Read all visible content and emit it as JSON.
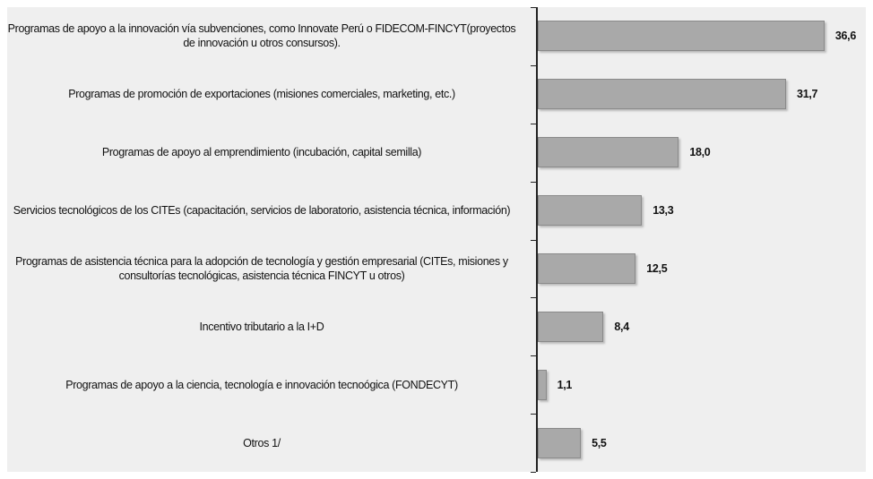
{
  "chart_data": {
    "type": "barh",
    "categories": [
      "Programas de apoyo a la innovación vía subvenciones, como Innovate Perú o FIDECOM-FINCYT(proyectos de innovación u otros consursos).",
      "Programas de promoción de exportaciones (misiones comerciales, marketing, etc.)",
      "Programas de apoyo al emprendimiento (incubación, capital semilla)",
      "Servicios tecnológicos de los CITEs (capacitación, servicios de laboratorio, asistencia técnica, información)",
      "Programas de asistencia técnica para la adopción de tecnología y gestión empresarial (CITEs, misiones y consultorías tecnológicas, asistencia técnica FINCYT u otros)",
      "Incentivo tributario a la I+D",
      "Programas de apoyo a la ciencia, tecnología e innovación tecnoógica (FONDECYT)",
      "Otros 1/"
    ],
    "values": [
      36.6,
      31.7,
      18.0,
      13.3,
      12.5,
      8.4,
      1.1,
      5.5
    ],
    "value_labels": [
      "36,6",
      "31,7",
      "18,0",
      "13,3",
      "12,5",
      "8,4",
      "1,1",
      "5,5"
    ],
    "color": "#a9a9a9"
  }
}
